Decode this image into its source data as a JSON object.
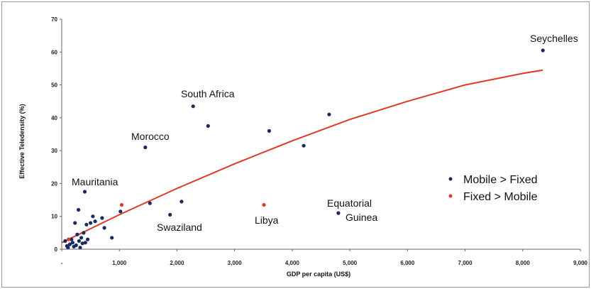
{
  "chart_data": {
    "type": "scatter",
    "title": "",
    "xlabel": "GDP per capita (US$)",
    "ylabel": "Effective Teledensity (%)",
    "xlim": [
      0,
      9000
    ],
    "ylim": [
      0,
      70
    ],
    "x_ticks": [
      "-",
      "1,000",
      "2,000",
      "3,000",
      "4,000",
      "5,000",
      "6,000",
      "7,000",
      "8,000",
      "9,000"
    ],
    "y_ticks": [
      "0",
      "10",
      "20",
      "30",
      "40",
      "50",
      "60",
      "70"
    ],
    "grid": false,
    "legend_position": "right",
    "colors": {
      "mobile": "#1a2a5e",
      "fixed": "#e0392b",
      "trend": "#e0392b"
    },
    "series": [
      {
        "name": "Mobile > Fixed",
        "color": "#1a2a5e",
        "points": [
          {
            "x": 60,
            "y": 2.5
          },
          {
            "x": 90,
            "y": 1.0
          },
          {
            "x": 110,
            "y": 0.5
          },
          {
            "x": 140,
            "y": 1.5
          },
          {
            "x": 170,
            "y": 3.0
          },
          {
            "x": 190,
            "y": 2.0
          },
          {
            "x": 210,
            "y": 0.8
          },
          {
            "x": 230,
            "y": 8.0
          },
          {
            "x": 250,
            "y": 1.2
          },
          {
            "x": 270,
            "y": 4.5
          },
          {
            "x": 290,
            "y": 12.0
          },
          {
            "x": 300,
            "y": 2.5
          },
          {
            "x": 320,
            "y": 0.5
          },
          {
            "x": 340,
            "y": 3.5
          },
          {
            "x": 360,
            "y": 1.8
          },
          {
            "x": 380,
            "y": 5.0
          },
          {
            "x": 400,
            "y": 17.5
          },
          {
            "x": 410,
            "y": 2.0
          },
          {
            "x": 430,
            "y": 7.5
          },
          {
            "x": 450,
            "y": 3.0
          },
          {
            "x": 500,
            "y": 8.0
          },
          {
            "x": 540,
            "y": 10.0
          },
          {
            "x": 580,
            "y": 8.5
          },
          {
            "x": 700,
            "y": 9.5
          },
          {
            "x": 740,
            "y": 6.5
          },
          {
            "x": 870,
            "y": 3.5
          },
          {
            "x": 1020,
            "y": 11.5
          },
          {
            "x": 1450,
            "y": 31.0
          },
          {
            "x": 1530,
            "y": 14.0
          },
          {
            "x": 1880,
            "y": 10.5
          },
          {
            "x": 2080,
            "y": 14.5
          },
          {
            "x": 2280,
            "y": 43.5
          },
          {
            "x": 2540,
            "y": 37.5
          },
          {
            "x": 3600,
            "y": 36.0
          },
          {
            "x": 4200,
            "y": 31.5
          },
          {
            "x": 4640,
            "y": 41.0
          },
          {
            "x": 4800,
            "y": 11.0
          },
          {
            "x": 8350,
            "y": 60.5
          }
        ]
      },
      {
        "name": "Fixed > Mobile",
        "color": "#e0392b",
        "points": [
          {
            "x": 120,
            "y": 3.0
          },
          {
            "x": 1040,
            "y": 13.5
          },
          {
            "x": 3510,
            "y": 13.5
          }
        ]
      }
    ],
    "trendline": {
      "color": "#e0392b",
      "points": [
        {
          "x": 0,
          "y": 2
        },
        {
          "x": 1000,
          "y": 10.5
        },
        {
          "x": 2000,
          "y": 18.5
        },
        {
          "x": 3000,
          "y": 26
        },
        {
          "x": 4000,
          "y": 33
        },
        {
          "x": 5000,
          "y": 39.5
        },
        {
          "x": 6000,
          "y": 45
        },
        {
          "x": 7000,
          "y": 50
        },
        {
          "x": 8000,
          "y": 53.5
        },
        {
          "x": 8350,
          "y": 54.5
        }
      ]
    },
    "annotations": [
      {
        "text": "Seychelles",
        "x": 8350,
        "y": 60.5
      },
      {
        "text": "South Africa",
        "x": 2280,
        "y": 43.5
      },
      {
        "text": "Morocco",
        "x": 1450,
        "y": 31.0
      },
      {
        "text": "Mauritania",
        "x": 400,
        "y": 17.5
      },
      {
        "text": "Swaziland",
        "x": 1880,
        "y": 10.5
      },
      {
        "text": "Libya",
        "x": 3510,
        "y": 13.5
      },
      {
        "text": "Equatorial",
        "x": 4800,
        "y": 11.0
      },
      {
        "text": "Guinea",
        "x": 4800,
        "y": 11.0
      }
    ]
  }
}
